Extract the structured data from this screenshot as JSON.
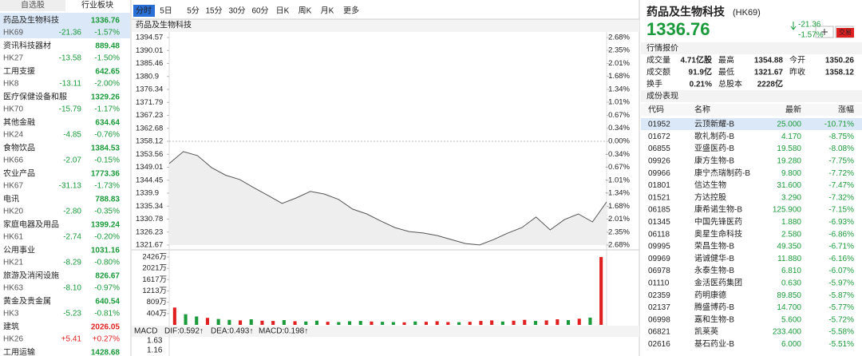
{
  "tabs": [
    "自选股",
    "行业板块"
  ],
  "sector_list": [
    {
      "name": "药品及生物科技",
      "price": "1336.76",
      "code": "HK69",
      "change": "-21.36",
      "pct": "-1.57%"
    },
    {
      "name": "资讯科技器材",
      "price": "889.48",
      "code": "HK27",
      "change": "-13.58",
      "pct": "-1.50%"
    },
    {
      "name": "工用支援",
      "price": "642.65",
      "code": "HK8",
      "change": "-13.11",
      "pct": "-2.00%"
    },
    {
      "name": "医疗保健设备和服",
      "price": "1329.26",
      "code": "HK70",
      "change": "-15.79",
      "pct": "-1.17%"
    },
    {
      "name": "其他金融",
      "price": "634.64",
      "code": "HK24",
      "change": "-4.85",
      "pct": "-0.76%"
    },
    {
      "name": "食物饮品",
      "price": "1384.53",
      "code": "HK66",
      "change": "-2.07",
      "pct": "-0.15%"
    },
    {
      "name": "农业产品",
      "price": "1773.36",
      "code": "HK67",
      "change": "-31.13",
      "pct": "-1.73%"
    },
    {
      "name": "电讯",
      "price": "788.83",
      "code": "HK20",
      "change": "-2.80",
      "pct": "-0.35%"
    },
    {
      "name": "家庭电器及用品",
      "price": "1399.24",
      "code": "HK61",
      "change": "-2.74",
      "pct": "-0.20%"
    },
    {
      "name": "公用事业",
      "price": "1031.16",
      "code": "HK21",
      "change": "-8.29",
      "pct": "-0.80%"
    },
    {
      "name": "旅游及消闲设施",
      "price": "826.67",
      "code": "HK63",
      "change": "-8.10",
      "pct": "-0.97%"
    },
    {
      "name": "黄金及贵金属",
      "price": "640.54",
      "code": "HK3",
      "change": "-5.23",
      "pct": "-0.81%"
    },
    {
      "name": "建筑",
      "price": "2026.05",
      "code": "HK26",
      "change": "+5.41",
      "pct": "+0.27%"
    },
    {
      "name": "工用运输",
      "price": "1428.68"
    }
  ],
  "toolbar": [
    "分时",
    "5日",
    "5分",
    "15分",
    "30分",
    "60分",
    "日K",
    "周K",
    "月K",
    "更多"
  ],
  "chart_data": [
    {
      "type": "line",
      "title": "药品及生物科技",
      "color": "#555555",
      "values": [
        1350.3,
        1354.5,
        1353.1,
        1348.9,
        1346.2,
        1344.7,
        1341.8,
        1339.1,
        1336.3,
        1338.2,
        1340.5,
        1339.6,
        1337.7,
        1334.3,
        1332.6,
        1330.1,
        1327.8,
        1326.4,
        1325.9,
        1325.0,
        1323.6,
        1322.2,
        1321.7,
        1323.6,
        1325.9,
        1327.8,
        1331.5,
        1327.0,
        1330.6,
        1332.6,
        1329.8,
        1336.8
      ],
      "ylim": [
        1321.67,
        1394.57
      ],
      "yticks": [
        1394.57,
        1390.01,
        1385.46,
        1380.9,
        1376.34,
        1371.79,
        1367.23,
        1362.68,
        1358.12,
        1353.56,
        1349.01,
        1344.45,
        1339.9,
        1335.34,
        1330.78,
        1326.23,
        1321.67
      ],
      "y2lim": [
        -2.68,
        2.68
      ],
      "y2ticks": [
        {
          "value": 2.68,
          "label": "2.68%"
        },
        {
          "value": 2.35,
          "label": "2.35%"
        },
        {
          "value": 2.01,
          "label": "2.01%"
        },
        {
          "value": 1.68,
          "label": "1.68%"
        },
        {
          "value": 1.34,
          "label": "1.34%"
        },
        {
          "value": 1.01,
          "label": "1.01%"
        },
        {
          "value": 0.67,
          "label": "0.67%"
        },
        {
          "value": 0.34,
          "label": "0.34%"
        },
        {
          "value": 0,
          "label": "0.00%"
        },
        {
          "value": -0.34,
          "label": "-0.34%"
        },
        {
          "value": -0.67,
          "label": "-0.67%"
        },
        {
          "value": -1.01,
          "label": "-1.01%"
        },
        {
          "value": -1.34,
          "label": "-1.34%"
        },
        {
          "value": -1.68,
          "label": "-1.68%"
        },
        {
          "value": -2.01,
          "label": "-2.01%"
        },
        {
          "value": -2.35,
          "label": "-2.35%"
        },
        {
          "value": -2.68,
          "label": "-2.68%"
        }
      ]
    },
    {
      "type": "bar",
      "values": [
        620,
        380,
        300,
        250,
        210,
        180,
        160,
        200,
        150,
        140,
        170,
        130,
        120,
        150,
        110,
        100,
        130,
        140,
        120,
        110,
        100,
        90,
        120,
        110,
        130,
        100,
        95,
        110,
        140,
        160,
        120,
        150,
        180,
        140,
        160,
        200,
        170,
        220,
        260,
        2426
      ],
      "colors": [
        "#e02020",
        "#1a9a3a",
        "#1a9a3a",
        "#e02020",
        "#1a9a3a",
        "#1a9a3a",
        "#e02020",
        "#1a9a3a",
        "#e02020",
        "#e02020",
        "#1a9a3a",
        "#e02020",
        "#1a9a3a",
        "#1a9a3a",
        "#e02020",
        "#1a9a3a",
        "#1a9a3a",
        "#1a9a3a",
        "#e02020",
        "#1a9a3a",
        "#1a9a3a",
        "#e02020",
        "#1a9a3a",
        "#e02020",
        "#e02020",
        "#e02020",
        "#1a9a3a",
        "#e02020",
        "#e02020",
        "#e02020",
        "#1a9a3a",
        "#e02020",
        "#e02020",
        "#1a9a3a",
        "#e02020",
        "#e02020",
        "#1a9a3a",
        "#e02020",
        "#1a9a3a",
        "#e02020"
      ],
      "ylim": [
        0,
        2426
      ],
      "yticks": [
        {
          "value": 2426,
          "label": "2426万"
        },
        {
          "value": 2021,
          "label": "2021万"
        },
        {
          "value": 1617,
          "label": "1617万"
        },
        {
          "value": 1213,
          "label": "1213万"
        },
        {
          "value": 809,
          "label": "809万"
        },
        {
          "value": 404,
          "label": "404万"
        }
      ]
    }
  ],
  "macd": {
    "label": "MACD",
    "dif": "DIF:0.592↑",
    "dea": "DEA:0.493↑",
    "macd": "MACD:0.198↑",
    "ticks": [
      "1.63",
      "1.16"
    ]
  },
  "quote": {
    "name": "药品及生物科技",
    "code": "(HK69)",
    "price": "1336.76",
    "change": "-21.36",
    "pct": "-1.57%",
    "trade": "交易",
    "section": "行情报价",
    "stats": [
      [
        "成交量",
        "4.71亿股",
        "最高",
        "1354.88",
        "今开",
        "1350.26"
      ],
      [
        "成交额",
        "91.9亿",
        "最低",
        "1321.67",
        "昨收",
        "1358.12"
      ],
      [
        "换手",
        "0.21%",
        "总股本",
        "2228亿"
      ]
    ]
  },
  "constituents": {
    "title": "成份表现",
    "header": [
      "代码",
      "名称",
      "最新",
      "涨幅"
    ],
    "rows": [
      [
        "01952",
        "云顶新耀-B",
        "25.000",
        "-10.71%"
      ],
      [
        "01672",
        "歌礼制药-B",
        "4.170",
        "-8.75%"
      ],
      [
        "06855",
        "亚盛医药-B",
        "19.580",
        "-8.08%"
      ],
      [
        "09926",
        "康方生物-B",
        "19.280",
        "-7.75%"
      ],
      [
        "09966",
        "康宁杰瑞制药-B",
        "9.800",
        "-7.72%"
      ],
      [
        "01801",
        "信达生物",
        "31.600",
        "-7.47%"
      ],
      [
        "01521",
        "方达控股",
        "3.290",
        "-7.32%"
      ],
      [
        "06185",
        "康希诺生物-B",
        "125.900",
        "-7.15%"
      ],
      [
        "01345",
        "中国先锋医药",
        "1.880",
        "-6.93%"
      ],
      [
        "06118",
        "奥星生命科技",
        "2.580",
        "-6.86%"
      ],
      [
        "09995",
        "荣昌生物-B",
        "49.350",
        "-6.71%"
      ],
      [
        "09969",
        "诺诚健华-B",
        "11.880",
        "-6.16%"
      ],
      [
        "06978",
        "永泰生物-B",
        "6.810",
        "-6.07%"
      ],
      [
        "01110",
        "金活医药集团",
        "0.630",
        "-5.97%"
      ],
      [
        "02359",
        "药明康德",
        "89.850",
        "-5.87%"
      ],
      [
        "02137",
        "腾盛博药-B",
        "14.700",
        "-5.77%"
      ],
      [
        "06998",
        "嘉和生物-B",
        "5.600",
        "-5.72%"
      ],
      [
        "06821",
        "凯莱英",
        "233.400",
        "-5.58%"
      ],
      [
        "02616",
        "基石药业-B",
        "6.000",
        "-5.51%"
      ]
    ]
  }
}
